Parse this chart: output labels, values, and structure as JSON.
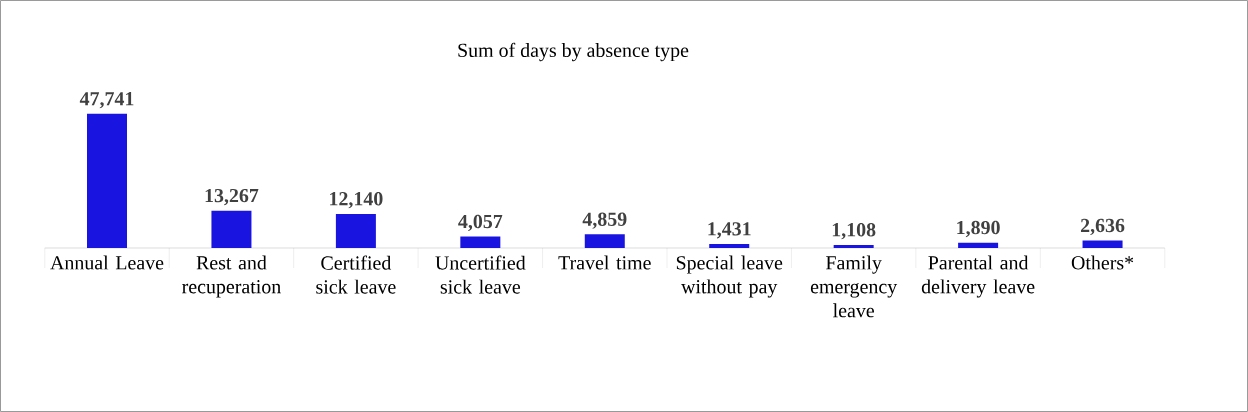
{
  "chart_data": {
    "type": "bar",
    "title": "Sum of days by absence type",
    "categories": [
      "Annual Leave",
      "Rest and recuperation",
      "Certified sick leave",
      "Uncertified sick leave",
      "Travel time",
      "Special leave without pay",
      "Family emergency leave",
      "Parental and delivery leave",
      "Others*"
    ],
    "values": [
      47741,
      13267,
      12140,
      4057,
      4859,
      1431,
      1108,
      1890,
      2636
    ],
    "value_labels": [
      "47,741",
      "13,267",
      "12,140",
      "4,057",
      "4,859",
      "1,431",
      "1,108",
      "1,890",
      "2,636"
    ],
    "color": "#1a14e0"
  }
}
